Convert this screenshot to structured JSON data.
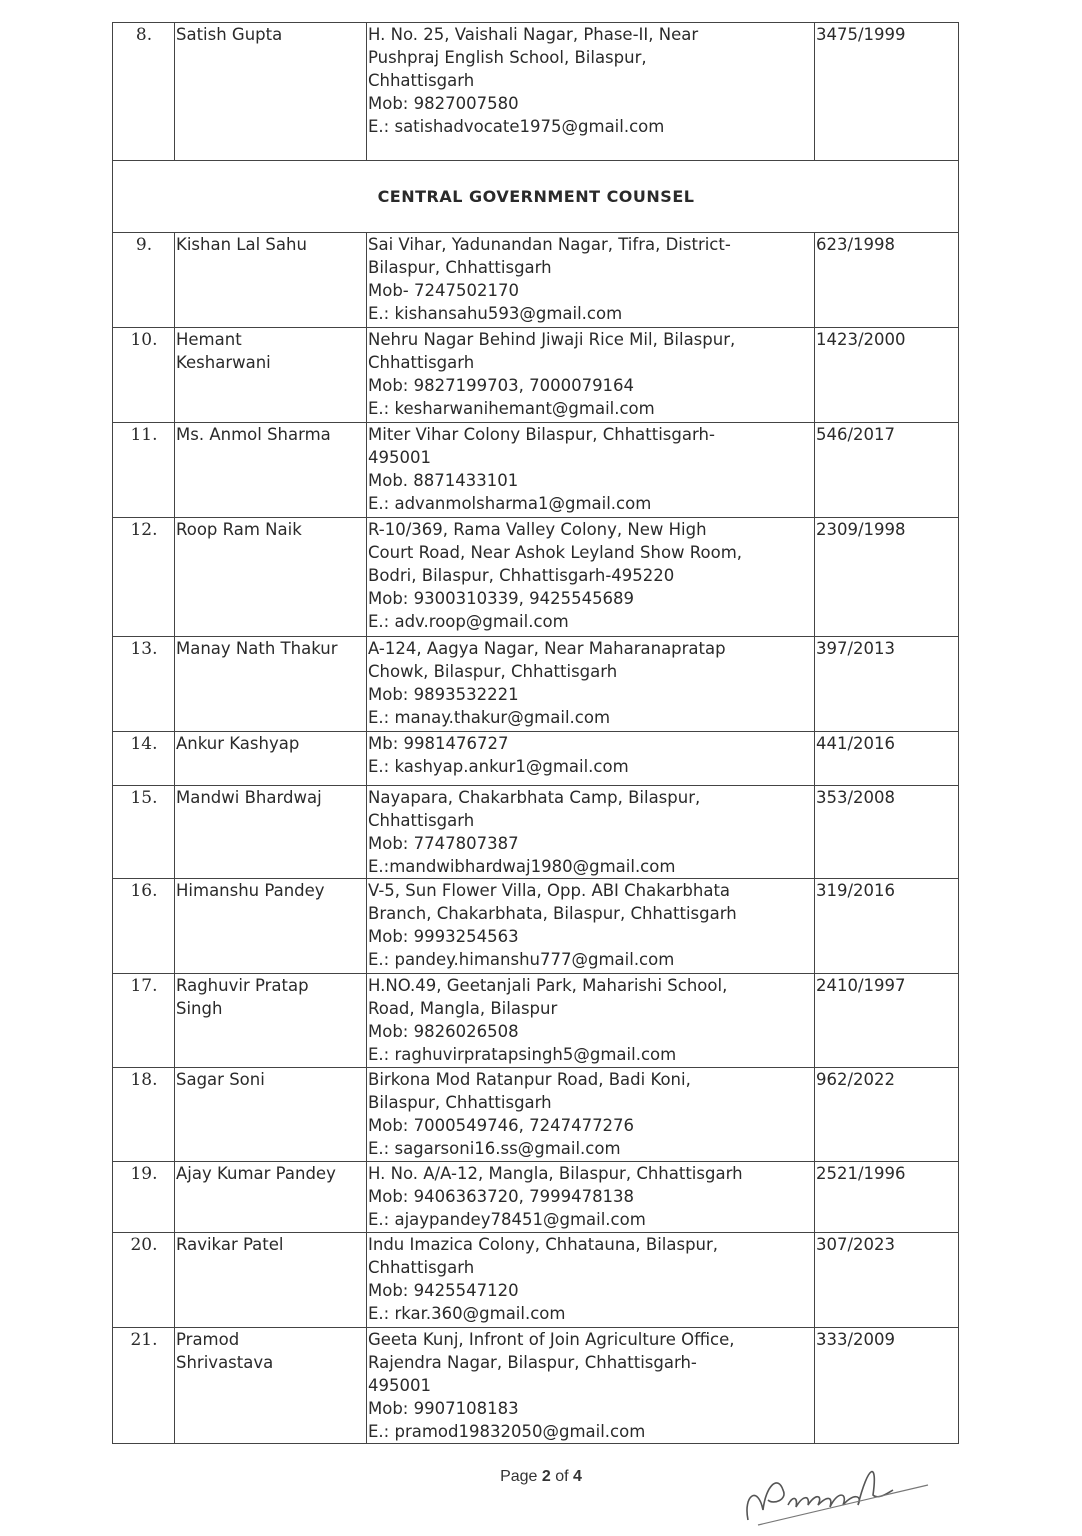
{
  "section_heading": "CENTRAL GOVERNMENT COUNSEL",
  "rows_before": [
    {
      "no": "8.",
      "name": [
        "Satish Gupta"
      ],
      "address": [
        "H. No. 25, Vaishali Nagar, Phase-II, Near",
        "Pushpraj English School, Bilaspur,",
        "Chhattisgarh",
        "Mob: 9827007580",
        "E.: satishadvocate1975@gmail.com"
      ],
      "enrolment": "3475/1999"
    }
  ],
  "rows_after": [
    {
      "no": "9.",
      "name": [
        "Kishan Lal Sahu"
      ],
      "address": [
        "Sai Vihar, Yadunandan Nagar, Tifra, District-",
        "Bilaspur, Chhattisgarh",
        "Mob- 7247502170",
        "E.: kishansahu593@gmail.com"
      ],
      "enrolment": "623/1998"
    },
    {
      "no": "10.",
      "name": [
        "Hemant",
        "Kesharwani"
      ],
      "address": [
        "Nehru Nagar Behind Jiwaji Rice Mil, Bilaspur,",
        "Chhattisgarh",
        "Mob: 9827199703, 7000079164",
        "E.: kesharwanihemant@gmail.com"
      ],
      "enrolment": "1423/2000"
    },
    {
      "no": "11.",
      "name": [
        "Ms. Anmol Sharma"
      ],
      "address": [
        "Miter Vihar Colony Bilaspur, Chhattisgarh-",
        "495001",
        "Mob. 8871433101",
        "E.: advanmolsharma1@gmail.com"
      ],
      "enrolment": "546/2017"
    },
    {
      "no": "12.",
      "name": [
        "Roop Ram Naik"
      ],
      "address": [
        "R-10/369, Rama Valley Colony, New High",
        "Court Road, Near Ashok Leyland Show Room,",
        "Bodri, Bilaspur, Chhattisgarh-495220",
        "Mob: 9300310339, 9425545689",
        "E.: adv.roop@gmail.com"
      ],
      "enrolment": "2309/1998"
    },
    {
      "no": "13.",
      "name": [
        "Manay Nath Thakur"
      ],
      "address": [
        "A-124, Aagya Nagar, Near Maharanapratap",
        "Chowk, Bilaspur, Chhattisgarh",
        "Mob: 9893532221",
        "E.: manay.thakur@gmail.com"
      ],
      "enrolment": "397/2013"
    },
    {
      "no": "14.",
      "name": [
        "Ankur Kashyap"
      ],
      "address": [
        "Mb: 9981476727",
        "E.: kashyap.ankur1@gmail.com"
      ],
      "enrolment": "441/2016"
    },
    {
      "no": "15.",
      "name": [
        "Mandwi Bhardwaj"
      ],
      "address": [
        "Nayapara, Chakarbhata Camp, Bilaspur,",
        "Chhattisgarh",
        "Mob: 7747807387",
        "E.:mandwibhardwaj1980@gmail.com"
      ],
      "enrolment": "353/2008"
    },
    {
      "no": "16.",
      "name": [
        "Himanshu Pandey"
      ],
      "address": [
        "V-5, Sun Flower Villa, Opp. ABI Chakarbhata",
        "Branch, Chakarbhata, Bilaspur, Chhattisgarh",
        "Mob: 9993254563",
        "E.: pandey.himanshu777@gmail.com"
      ],
      "enrolment": "319/2016"
    },
    {
      "no": "17.",
      "name": [
        "Raghuvir Pratap",
        "Singh"
      ],
      "address": [
        "H.NO.49, Geetanjali Park, Maharishi School,",
        "Road, Mangla, Bilaspur",
        "Mob: 9826026508",
        "E.: raghuvirpratapsingh5@gmail.com"
      ],
      "enrolment": "2410/1997"
    },
    {
      "no": "18.",
      "name": [
        "Sagar Soni"
      ],
      "address": [
        "Birkona Mod Ratanpur Road, Badi Koni,",
        "Bilaspur, Chhattisgarh",
        "Mob: 7000549746, 7247477276",
        "E.: sagarsoni16.ss@gmail.com"
      ],
      "enrolment": "962/2022"
    },
    {
      "no": "19.",
      "name": [
        "Ajay Kumar Pandey"
      ],
      "address": [
        "H. No. A/A-12, Mangla, Bilaspur, Chhattisgarh",
        "Mob: 9406363720, 7999478138",
        "E.: ajaypandey78451@gmail.com"
      ],
      "enrolment": "2521/1996"
    },
    {
      "no": "20.",
      "name": [
        "Ravikar Patel"
      ],
      "address": [
        "Indu Imazica Colony, Chhatauna, Bilaspur,",
        "Chhattisgarh",
        "Mob: 9425547120",
        "E.: rkar.360@gmail.com"
      ],
      "enrolment": "307/2023"
    },
    {
      "no": "21.",
      "name": [
        "Pramod",
        "Shrivastava"
      ],
      "address": [
        "Geeta Kunj, Infront of Join Agriculture Office,",
        "Rajendra Nagar, Bilaspur, Chhattisgarh-",
        "495001",
        "Mob: 9907108183",
        "E.: pramod19832050@gmail.com"
      ],
      "enrolment": "333/2009"
    }
  ],
  "footer": {
    "page_prefix": "Page ",
    "page_current": "2",
    "page_mid": " of ",
    "page_total": "4"
  },
  "signature": "NPrasad"
}
